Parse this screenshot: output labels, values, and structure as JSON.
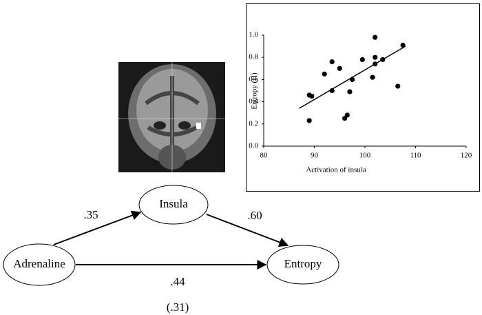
{
  "chart_data": {
    "type": "scatter",
    "xlabel": "Activation of insula",
    "ylabel": "Entropy (H)",
    "x": [
      89,
      89,
      89.5,
      92,
      93.5,
      93.5,
      95,
      96,
      96.5,
      97,
      97.5,
      99.5,
      102,
      102,
      102,
      101.5,
      103.5,
      106.5,
      107.5
    ],
    "values": [
      0.23,
      0.46,
      0.45,
      0.65,
      0.76,
      0.5,
      0.7,
      0.25,
      0.28,
      0.49,
      0.6,
      0.78,
      0.98,
      0.8,
      0.74,
      0.62,
      0.78,
      0.54,
      0.91
    ],
    "color": "#000000",
    "fit": {
      "x": [
        87,
        108
      ],
      "values": [
        0.34,
        0.9
      ]
    },
    "xlim": [
      80,
      120
    ],
    "xticks": [
      80,
      90,
      100,
      110,
      120
    ],
    "ylim": [
      0,
      1
    ],
    "yticks": [
      {
        "value": 0,
        "label": "0.0"
      },
      0.2,
      0.4,
      0.6,
      0.8,
      {
        "value": 1,
        "label": "1.0"
      }
    ],
    "grid": false
  },
  "diagram": {
    "nodes": [
      {
        "label": "Insula"
      },
      {
        "label": "Adrenaline"
      },
      {
        "label": "Entropy"
      }
    ],
    "edges": [
      {
        "label": ".35"
      },
      {
        "label": ".60"
      },
      {
        "label": ".44"
      }
    ],
    "note": "(.31)"
  }
}
